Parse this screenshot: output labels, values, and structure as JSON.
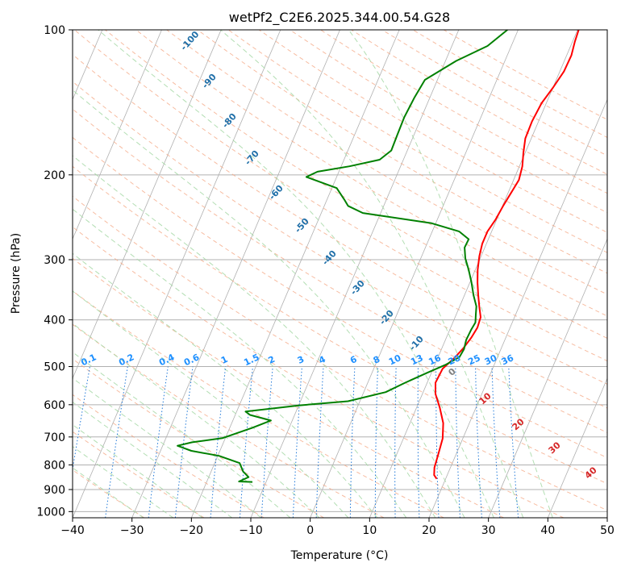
{
  "chart_data": {
    "type": "line",
    "title": "wetPf2_C2E6.2025.344.00.54.G28",
    "xlabel": "Temperature (°C)",
    "ylabel": "Pressure (hPa)",
    "xlim": [
      -40,
      50
    ],
    "ylim": [
      1030,
      100
    ],
    "y_scale": "log",
    "grid": true,
    "x_ticks": [
      "−40",
      "−30",
      "−20",
      "−10",
      "0",
      "10",
      "20",
      "30",
      "40",
      "50"
    ],
    "y_ticks": [
      "100",
      "200",
      "300",
      "400",
      "500",
      "600",
      "700",
      "800",
      "900",
      "1000"
    ],
    "x_tick_values": [
      -40,
      -30,
      -20,
      -10,
      0,
      10,
      20,
      30,
      40,
      50
    ],
    "y_tick_values": [
      100,
      200,
      300,
      400,
      500,
      600,
      700,
      800,
      900,
      1000
    ],
    "series": [
      {
        "color": "#ff0000",
        "points": [
          [
            18.5,
            855
          ],
          [
            17.8,
            840
          ],
          [
            17.3,
            810
          ],
          [
            17.0,
            760
          ],
          [
            16.6,
            705
          ],
          [
            15.6,
            655
          ],
          [
            13.9,
            608
          ],
          [
            12.2,
            570
          ],
          [
            11.4,
            540
          ],
          [
            11.6,
            505
          ],
          [
            12.8,
            480
          ],
          [
            13.6,
            458
          ],
          [
            14.2,
            435
          ],
          [
            14.5,
            415
          ],
          [
            14.3,
            395
          ],
          [
            13.3,
            375
          ],
          [
            12.3,
            355
          ],
          [
            11.3,
            335
          ],
          [
            10.4,
            315
          ],
          [
            9.7,
            295
          ],
          [
            9.3,
            278
          ],
          [
            9.3,
            262
          ],
          [
            9.8,
            248
          ],
          [
            10.1,
            232
          ],
          [
            10.5,
            218
          ],
          [
            10.9,
            205
          ],
          [
            10.5,
            192
          ],
          [
            9.7,
            180
          ],
          [
            9.0,
            168
          ],
          [
            8.9,
            155
          ],
          [
            9.2,
            142
          ],
          [
            10.0,
            132
          ],
          [
            10.7,
            122
          ],
          [
            10.8,
            113
          ],
          [
            10.4,
            106
          ],
          [
            10.2,
            100
          ]
        ]
      },
      {
        "color": "#008000",
        "points": [
          [
            -12.3,
            868
          ],
          [
            -14.6,
            866
          ],
          [
            -13.3,
            848
          ],
          [
            -14.6,
            826
          ],
          [
            -15.8,
            793
          ],
          [
            -19.8,
            766
          ],
          [
            -24.8,
            748
          ],
          [
            -27.5,
            730
          ],
          [
            -25.3,
            718
          ],
          [
            -20.5,
            704
          ],
          [
            -16.2,
            670
          ],
          [
            -13.6,
            647
          ],
          [
            -17.5,
            630
          ],
          [
            -18.5,
            620
          ],
          [
            -10.0,
            602
          ],
          [
            -2.0,
            590
          ],
          [
            3.7,
            565
          ],
          [
            6.3,
            540
          ],
          [
            9.3,
            515
          ],
          [
            11.9,
            495
          ],
          [
            13.6,
            478
          ],
          [
            13.8,
            460
          ],
          [
            13.5,
            440
          ],
          [
            13.6,
            420
          ],
          [
            13.8,
            405
          ],
          [
            13.3,
            390
          ],
          [
            12.8,
            375
          ],
          [
            11.5,
            355
          ],
          [
            10.3,
            335
          ],
          [
            8.9,
            315
          ],
          [
            7.5,
            298
          ],
          [
            6.6,
            283
          ],
          [
            6.7,
            272
          ],
          [
            4.5,
            262
          ],
          [
            -0.7,
            252
          ],
          [
            -13.0,
            240
          ],
          [
            -16.0,
            232
          ],
          [
            -17.1,
            225
          ],
          [
            -19.2,
            213
          ],
          [
            -25.1,
            202
          ],
          [
            -23.6,
            197
          ],
          [
            -18.6,
            192
          ],
          [
            -14.0,
            186
          ],
          [
            -12.7,
            178
          ],
          [
            -12.8,
            165
          ],
          [
            -12.9,
            152
          ],
          [
            -12.6,
            138
          ],
          [
            -12.1,
            127
          ],
          [
            -8.2,
            116
          ],
          [
            -4.0,
            108
          ],
          [
            -1.8,
            100
          ]
        ]
      }
    ],
    "dry_adiabat_labels": [
      "-100",
      "-90",
      "-80",
      "-70",
      "-60",
      "-50",
      "-40",
      "-30",
      "-20",
      "-10"
    ],
    "mixing_ratio_labels": [
      "0.1",
      "0.2",
      "0.4",
      "0.6",
      "1",
      "1.5",
      "2",
      "3",
      "4",
      "6",
      "8",
      "10",
      "13",
      "16",
      "20",
      "25",
      "30",
      "36"
    ],
    "moist_adiabat_labels": [
      "0",
      "10",
      "20",
      "30",
      "40"
    ],
    "colors": {
      "isobar": "#b0b0b0",
      "isotherm": "#b0b0b0",
      "dry_adiabat": "#f4a582",
      "moist_adiabat": "#a6d8a6",
      "mixing_ratio": "#1f78d8",
      "dry_label": "#1f6fa8",
      "mix_label": "#1e90ff",
      "moist_label_warm": "#d62728",
      "moist_label_zero": "#808080",
      "background_curve": "#d9c4a8"
    }
  }
}
